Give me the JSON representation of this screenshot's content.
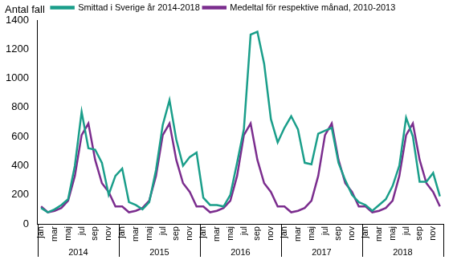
{
  "chart_data": {
    "type": "line",
    "y_label": "Antal fall",
    "categories": [
      "jan",
      null,
      "mar",
      null,
      "maj",
      null,
      "jul",
      null,
      "sep",
      null,
      "nov",
      null,
      "jan",
      null,
      "mar",
      null,
      "maj",
      null,
      "jul",
      null,
      "sep",
      null,
      "nov",
      null,
      "jan",
      null,
      "mar",
      null,
      "maj",
      null,
      "jul",
      null,
      "sep",
      null,
      "nov",
      null,
      "jan",
      null,
      "mar",
      null,
      "maj",
      null,
      "jul",
      null,
      "sep",
      null,
      "nov",
      null,
      "jan",
      null,
      "mar",
      null,
      "maj",
      null,
      "jul",
      null,
      "sep",
      null,
      "nov",
      null
    ],
    "year_labels": [
      "2014",
      "2015",
      "2016",
      "2017",
      "2018"
    ],
    "series": [
      {
        "name": "Smittad i Sverige år 2014-2018",
        "color": "#1a9e8a",
        "marker": "none",
        "line_style": "solid",
        "values": [
          110,
          80,
          100,
          130,
          170,
          400,
          770,
          520,
          510,
          420,
          200,
          330,
          380,
          150,
          130,
          100,
          150,
          370,
          680,
          850,
          580,
          400,
          460,
          490,
          180,
          130,
          130,
          120,
          200,
          420,
          650,
          1300,
          1320,
          1100,
          720,
          560,
          660,
          740,
          650,
          420,
          410,
          620,
          640,
          660,
          420,
          300,
          200,
          150,
          130,
          90,
          130,
          170,
          260,
          400,
          730,
          600,
          290,
          290,
          350,
          190
        ]
      },
      {
        "name": "Medeltal för respektive månad, 2010-2013",
        "color": "#7b2d8e",
        "marker": "none",
        "line_style": "solid",
        "values": [
          120,
          80,
          90,
          110,
          160,
          330,
          610,
          690,
          440,
          280,
          220,
          120,
          120,
          80,
          90,
          110,
          160,
          330,
          610,
          690,
          440,
          280,
          220,
          120,
          120,
          80,
          90,
          110,
          160,
          330,
          610,
          690,
          440,
          280,
          220,
          120,
          120,
          80,
          90,
          110,
          160,
          330,
          610,
          690,
          440,
          280,
          220,
          120,
          120,
          80,
          90,
          110,
          160,
          330,
          610,
          690,
          440,
          280,
          220,
          120
        ]
      }
    ],
    "ylim": [
      0,
      1400
    ],
    "yticks": [
      0,
      200,
      400,
      600,
      800,
      1000,
      1200,
      1400
    ],
    "grid": false,
    "legend": "top"
  }
}
